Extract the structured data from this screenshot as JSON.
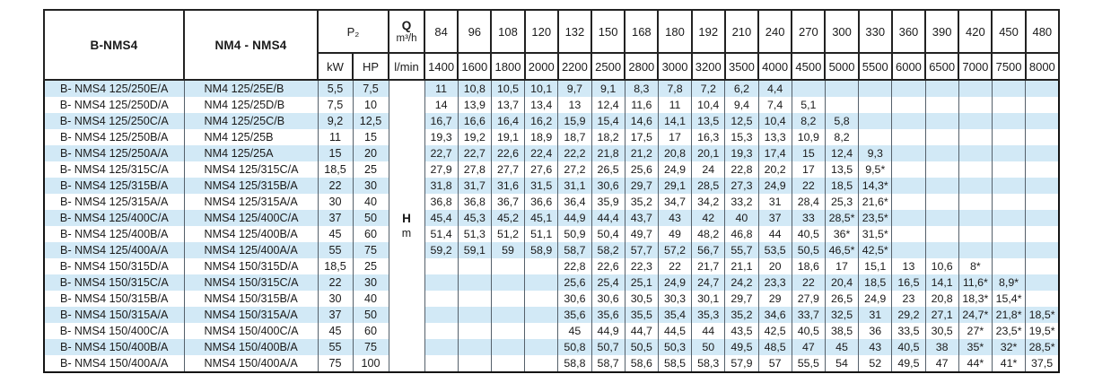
{
  "colors": {
    "stripe_blue": "#d2e9f6",
    "border_dark": "#141414",
    "grid_line": "#55606a"
  },
  "header": {
    "col1": "B-NMS4",
    "col2": "NM4 - NMS4",
    "p2": "P₂",
    "kw": "kW",
    "hp": "HP",
    "q": "Q",
    "q_unit": "m³/h",
    "lmin": "l/min",
    "flow_m3h": [
      "84",
      "96",
      "108",
      "120",
      "132",
      "150",
      "168",
      "180",
      "192",
      "210",
      "240",
      "270",
      "300",
      "330",
      "360",
      "390",
      "420",
      "450",
      "480"
    ],
    "flow_lmin": [
      "1400",
      "1600",
      "1800",
      "2000",
      "2200",
      "2500",
      "2800",
      "3000",
      "3200",
      "3500",
      "4000",
      "4500",
      "5000",
      "5500",
      "6000",
      "6500",
      "7000",
      "7500",
      "8000"
    ]
  },
  "head_column_label": {
    "symbol": "H",
    "unit": "m"
  },
  "rows": [
    {
      "b": "B- NMS4 125/250E/A",
      "n": "NM4 125/25E/B",
      "kw": "5,5",
      "hp": "7,5",
      "values": [
        "11",
        "10,8",
        "10,5",
        "10,1",
        "9,7",
        "9,1",
        "8,3",
        "7,8",
        "7,2",
        "6,2",
        "4,4",
        "",
        "",
        "",
        "",
        "",
        "",
        "",
        ""
      ]
    },
    {
      "b": "B- NMS4 125/250D/A",
      "n": "NM4 125/25D/B",
      "kw": "7,5",
      "hp": "10",
      "values": [
        "14",
        "13,9",
        "13,7",
        "13,4",
        "13",
        "12,4",
        "11,6",
        "11",
        "10,4",
        "9,4",
        "7,4",
        "5,1",
        "",
        "",
        "",
        "",
        "",
        "",
        ""
      ]
    },
    {
      "b": "B- NMS4 125/250C/A",
      "n": "NM4 125/25C/B",
      "kw": "9,2",
      "hp": "12,5",
      "values": [
        "16,7",
        "16,6",
        "16,4",
        "16,2",
        "15,9",
        "15,4",
        "14,6",
        "14,1",
        "13,5",
        "12,5",
        "10,4",
        "8,2",
        "5,8",
        "",
        "",
        "",
        "",
        "",
        ""
      ]
    },
    {
      "b": "B- NMS4 125/250B/A",
      "n": "NM4 125/25B",
      "kw": "11",
      "hp": "15",
      "values": [
        "19,3",
        "19,2",
        "19,1",
        "18,9",
        "18,7",
        "18,2",
        "17,5",
        "17",
        "16,3",
        "15,3",
        "13,3",
        "10,9",
        "8,2",
        "",
        "",
        "",
        "",
        "",
        ""
      ]
    },
    {
      "b": "B- NMS4 125/250A/A",
      "n": "NM4 125/25A",
      "kw": "15",
      "hp": "20",
      "values": [
        "22,7",
        "22,7",
        "22,6",
        "22,4",
        "22,2",
        "21,8",
        "21,2",
        "20,8",
        "20,1",
        "19,3",
        "17,4",
        "15",
        "12,4",
        "9,3",
        "",
        "",
        "",
        "",
        ""
      ]
    },
    {
      "b": "B- NMS4 125/315C/A",
      "n": "NMS4 125/315C/A",
      "kw": "18,5",
      "hp": "25",
      "values": [
        "27,9",
        "27,8",
        "27,7",
        "27,6",
        "27,2",
        "26,5",
        "25,6",
        "24,9",
        "24",
        "22,8",
        "20,2",
        "17",
        "13,5",
        "9,5*",
        "",
        "",
        "",
        "",
        ""
      ]
    },
    {
      "b": "B- NMS4 125/315B/A",
      "n": "NMS4 125/315B/A",
      "kw": "22",
      "hp": "30",
      "values": [
        "31,8",
        "31,7",
        "31,6",
        "31,5",
        "31,1",
        "30,6",
        "29,7",
        "29,1",
        "28,5",
        "27,3",
        "24,9",
        "22",
        "18,5",
        "14,3*",
        "",
        "",
        "",
        "",
        ""
      ]
    },
    {
      "b": "B- NMS4 125/315A/A",
      "n": "NMS4 125/315A/A",
      "kw": "30",
      "hp": "40",
      "values": [
        "36,8",
        "36,8",
        "36,7",
        "36,6",
        "36,4",
        "35,9",
        "35,2",
        "34,7",
        "34,2",
        "33,2",
        "31",
        "28,4",
        "25,3",
        "21,6*",
        "",
        "",
        "",
        "",
        ""
      ]
    },
    {
      "b": "B- NMS4 125/400C/A",
      "n": "NMS4 125/400C/A",
      "kw": "37",
      "hp": "50",
      "values": [
        "45,4",
        "45,3",
        "45,2",
        "45,1",
        "44,9",
        "44,4",
        "43,7",
        "43",
        "42",
        "40",
        "37",
        "33",
        "28,5*",
        "23,5*",
        "",
        "",
        "",
        "",
        ""
      ]
    },
    {
      "b": "B- NMS4 125/400B/A",
      "n": "NMS4 125/400B/A",
      "kw": "45",
      "hp": "60",
      "values": [
        "51,4",
        "51,3",
        "51,2",
        "51,1",
        "50,9",
        "50,4",
        "49,7",
        "49",
        "48,2",
        "46,8",
        "44",
        "40,5",
        "36*",
        "31,5*",
        "",
        "",
        "",
        "",
        ""
      ]
    },
    {
      "b": "B- NMS4 125/400A/A",
      "n": "NMS4 125/400A/A",
      "kw": "55",
      "hp": "75",
      "values": [
        "59,2",
        "59,1",
        "59",
        "58,9",
        "58,7",
        "58,2",
        "57,7",
        "57,2",
        "56,7",
        "55,7",
        "53,5",
        "50,5",
        "46,5*",
        "42,5*",
        "",
        "",
        "",
        "",
        ""
      ]
    },
    {
      "b": "B- NMS4 150/315D/A",
      "n": "NMS4 150/315D/A",
      "kw": "18,5",
      "hp": "25",
      "values": [
        "",
        "",
        "",
        "",
        "22,8",
        "22,6",
        "22,3",
        "22",
        "21,7",
        "21,1",
        "20",
        "18,6",
        "17",
        "15,1",
        "13",
        "10,6",
        "8*",
        "",
        ""
      ]
    },
    {
      "b": "B- NMS4 150/315C/A",
      "n": "NMS4 150/315C/A",
      "kw": "22",
      "hp": "30",
      "values": [
        "",
        "",
        "",
        "",
        "25,6",
        "25,4",
        "25,1",
        "24,9",
        "24,7",
        "24,2",
        "23,3",
        "22",
        "20,4",
        "18,5",
        "16,5",
        "14,1",
        "11,6*",
        "8,9*",
        ""
      ]
    },
    {
      "b": "B- NMS4 150/315B/A",
      "n": "NMS4 150/315B/A",
      "kw": "30",
      "hp": "40",
      "values": [
        "",
        "",
        "",
        "",
        "30,6",
        "30,6",
        "30,5",
        "30,3",
        "30,1",
        "29,7",
        "29",
        "27,9",
        "26,5",
        "24,9",
        "23",
        "20,8",
        "18,3*",
        "15,4*",
        ""
      ]
    },
    {
      "b": "B- NMS4 150/315A/A",
      "n": "NMS4 150/315A/A",
      "kw": "37",
      "hp": "50",
      "values": [
        "",
        "",
        "",
        "",
        "35,6",
        "35,6",
        "35,5",
        "35,4",
        "35,3",
        "35,2",
        "34,6",
        "33,7",
        "32,5",
        "31",
        "29,2",
        "27,1",
        "24,7*",
        "21,8*",
        "18,5*"
      ]
    },
    {
      "b": "B- NMS4 150/400C/A",
      "n": "NMS4 150/400C/A",
      "kw": "45",
      "hp": "60",
      "values": [
        "",
        "",
        "",
        "",
        "45",
        "44,9",
        "44,7",
        "44,5",
        "44",
        "43,5",
        "42,5",
        "40,5",
        "38,5",
        "36",
        "33,5",
        "30,5",
        "27*",
        "23,5*",
        "19,5*"
      ]
    },
    {
      "b": "B- NMS4 150/400B/A",
      "n": "NMS4 150/400B/A",
      "kw": "55",
      "hp": "75",
      "values": [
        "",
        "",
        "",
        "",
        "50,8",
        "50,7",
        "50,5",
        "50,3",
        "50",
        "49,5",
        "48,5",
        "47",
        "45",
        "43",
        "40,5",
        "38",
        "35*",
        "32*",
        "28,5*"
      ]
    },
    {
      "b": "B- NMS4 150/400A/A",
      "n": "NMS4 150/400A/A",
      "kw": "75",
      "hp": "100",
      "values": [
        "",
        "",
        "",
        "",
        "58,8",
        "58,7",
        "58,6",
        "58,5",
        "58,3",
        "57,9",
        "57",
        "55,5",
        "54",
        "52",
        "49,5",
        "47",
        "44*",
        "41*",
        "37,5"
      ]
    }
  ]
}
